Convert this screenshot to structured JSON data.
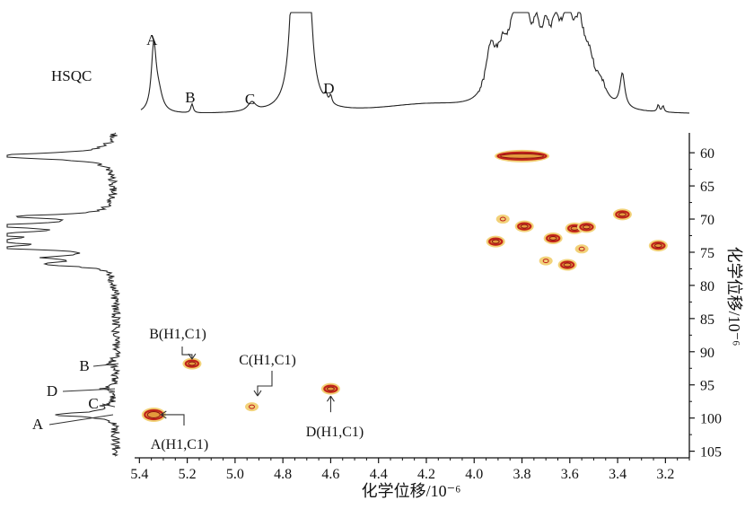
{
  "chart_data": {
    "type": "scatter",
    "subtype": "2D HSQC NMR contour spectrum",
    "title": "HSQC",
    "xlabel": "化学位移/10⁻⁶",
    "ylabel": "化学位移/10⁻⁶",
    "xlim": [
      5.42,
      3.1
    ],
    "ylim": [
      57,
      106
    ],
    "x_reversed": true,
    "y_reversed": true,
    "x_ticks": [
      5.4,
      5.2,
      5.0,
      4.8,
      4.6,
      4.4,
      4.2,
      4.0,
      3.8,
      3.6,
      3.4,
      3.2
    ],
    "x_tick_labels": [
      "5.4",
      "5.2",
      "5.0",
      "4.8",
      "4.6",
      "4.4",
      "4.2",
      "4.0",
      "3.8",
      "3.6",
      "3.4",
      "3.2"
    ],
    "y_ticks": [
      60,
      65,
      70,
      75,
      80,
      85,
      90,
      95,
      100,
      105
    ],
    "y_tick_labels": [
      "60",
      "65",
      "70",
      "75",
      "80",
      "85",
      "90",
      "95",
      "100",
      "105"
    ],
    "grid": false,
    "cross_peaks": [
      {
        "x": 5.34,
        "y": 99.5,
        "intensity": "strong",
        "label": "A(H1,C1)"
      },
      {
        "x": 5.18,
        "y": 91.8,
        "intensity": "medium",
        "label": "B(H1,C1)"
      },
      {
        "x": 4.93,
        "y": 98.3,
        "intensity": "weak",
        "label": "C(H1,C1)"
      },
      {
        "x": 4.6,
        "y": 95.6,
        "intensity": "medium",
        "label": "D(H1,C1)"
      },
      {
        "x": 3.8,
        "y": 60.5,
        "intensity": "strong-elongated",
        "label": ""
      },
      {
        "x": 3.88,
        "y": 70.0,
        "intensity": "weak",
        "label": ""
      },
      {
        "x": 3.79,
        "y": 71.1,
        "intensity": "medium",
        "label": ""
      },
      {
        "x": 3.91,
        "y": 73.4,
        "intensity": "medium",
        "label": ""
      },
      {
        "x": 3.67,
        "y": 72.9,
        "intensity": "medium",
        "label": ""
      },
      {
        "x": 3.58,
        "y": 71.4,
        "intensity": "medium",
        "label": ""
      },
      {
        "x": 3.53,
        "y": 71.2,
        "intensity": "medium",
        "label": ""
      },
      {
        "x": 3.55,
        "y": 74.5,
        "intensity": "weak",
        "label": ""
      },
      {
        "x": 3.7,
        "y": 76.3,
        "intensity": "weak",
        "label": ""
      },
      {
        "x": 3.61,
        "y": 76.9,
        "intensity": "medium",
        "label": ""
      },
      {
        "x": 3.38,
        "y": 69.3,
        "intensity": "medium",
        "label": ""
      },
      {
        "x": 3.23,
        "y": 74.0,
        "intensity": "medium",
        "label": ""
      }
    ],
    "projection_1h": {
      "peak_labels": [
        {
          "label": "A",
          "x": 5.34
        },
        {
          "label": "B",
          "x": 5.18
        },
        {
          "label": "C",
          "x": 4.93
        },
        {
          "label": "D",
          "x": 4.6
        }
      ]
    },
    "projection_13c": {
      "peak_labels": [
        {
          "label": "A",
          "y": 99.5
        },
        {
          "label": "B",
          "y": 91.8
        },
        {
          "label": "C",
          "y": 98.3
        },
        {
          "label": "D",
          "y": 95.6
        }
      ]
    },
    "colors": {
      "axis": "#111111",
      "trace": "#222222",
      "contour_outer": "#f2d27a",
      "contour_mid": "#e39a3c",
      "contour_core": "#c0211b",
      "contour_dark": "#8e1010"
    }
  }
}
